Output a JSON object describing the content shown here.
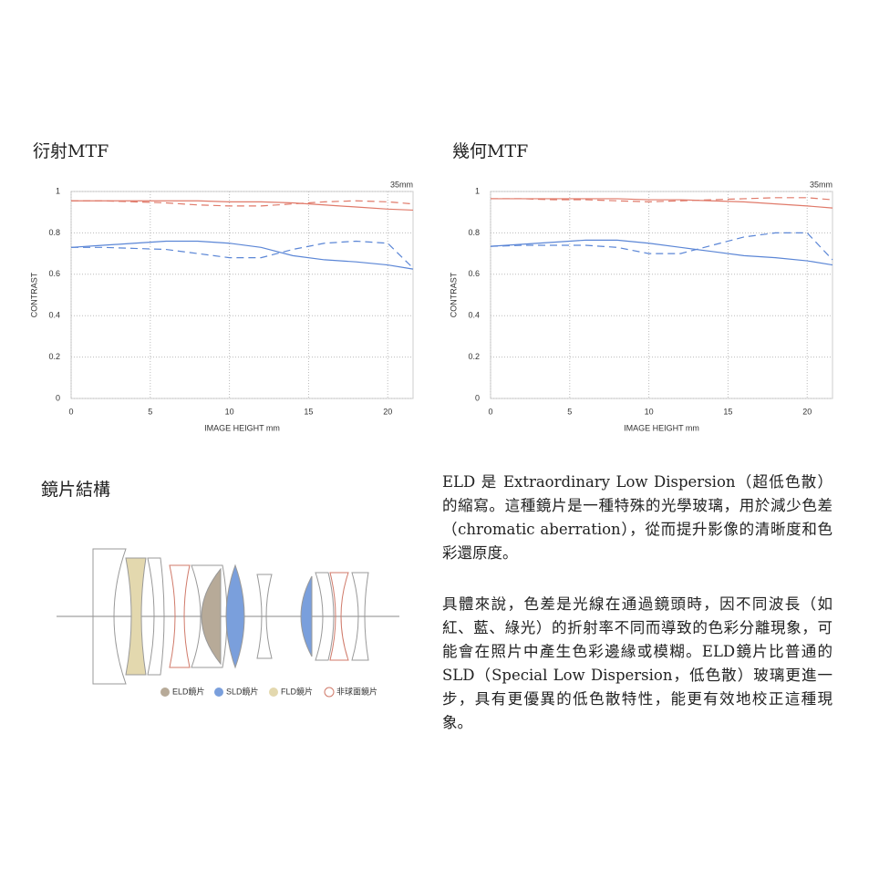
{
  "chart_data": [
    {
      "type": "line",
      "title": "衍射MTF",
      "annotation": "35mm",
      "xlabel": "IMAGE HEIGHT  mm",
      "ylabel": "CONTRAST",
      "xlim": [
        0,
        21.6
      ],
      "ylim": [
        0,
        1
      ],
      "xticks": [
        0,
        5,
        10,
        15,
        20
      ],
      "yticks": [
        0,
        0.2,
        0.4,
        0.6,
        0.8,
        1
      ],
      "grid": true,
      "x": [
        0,
        2,
        4,
        6,
        8,
        10,
        12,
        14,
        16,
        18,
        20,
        21.6
      ],
      "series": [
        {
          "color": "#e07a6a",
          "style": "solid",
          "values": [
            0.955,
            0.955,
            0.955,
            0.955,
            0.955,
            0.95,
            0.95,
            0.945,
            0.935,
            0.925,
            0.915,
            0.91
          ]
        },
        {
          "color": "#e07a6a",
          "style": "dashed",
          "values": [
            0.955,
            0.955,
            0.95,
            0.945,
            0.935,
            0.93,
            0.93,
            0.94,
            0.95,
            0.955,
            0.95,
            0.94
          ]
        },
        {
          "color": "#5b86d6",
          "style": "solid",
          "values": [
            0.73,
            0.74,
            0.75,
            0.76,
            0.76,
            0.75,
            0.73,
            0.69,
            0.67,
            0.66,
            0.645,
            0.625
          ]
        },
        {
          "color": "#5b86d6",
          "style": "dashed",
          "values": [
            0.73,
            0.73,
            0.725,
            0.72,
            0.7,
            0.68,
            0.68,
            0.72,
            0.75,
            0.76,
            0.75,
            0.63
          ]
        }
      ]
    },
    {
      "type": "line",
      "title": "幾何MTF",
      "annotation": "35mm",
      "xlabel": "IMAGE HEIGHT  mm",
      "ylabel": "CONTRAST",
      "xlim": [
        0,
        21.6
      ],
      "ylim": [
        0,
        1
      ],
      "xticks": [
        0,
        5,
        10,
        15,
        20
      ],
      "yticks": [
        0,
        0.2,
        0.4,
        0.6,
        0.8,
        1
      ],
      "grid": true,
      "x": [
        0,
        2,
        4,
        6,
        8,
        10,
        12,
        14,
        16,
        18,
        20,
        21.6
      ],
      "series": [
        {
          "color": "#e07a6a",
          "style": "solid",
          "values": [
            0.965,
            0.965,
            0.965,
            0.965,
            0.965,
            0.96,
            0.96,
            0.955,
            0.95,
            0.94,
            0.93,
            0.92
          ]
        },
        {
          "color": "#e07a6a",
          "style": "dashed",
          "values": [
            0.965,
            0.965,
            0.96,
            0.96,
            0.955,
            0.95,
            0.955,
            0.96,
            0.965,
            0.97,
            0.97,
            0.96
          ]
        },
        {
          "color": "#5b86d6",
          "style": "solid",
          "values": [
            0.735,
            0.745,
            0.755,
            0.765,
            0.765,
            0.75,
            0.73,
            0.71,
            0.69,
            0.68,
            0.665,
            0.645
          ]
        },
        {
          "color": "#5b86d6",
          "style": "dashed",
          "values": [
            0.735,
            0.74,
            0.74,
            0.74,
            0.73,
            0.7,
            0.7,
            0.74,
            0.78,
            0.8,
            0.8,
            0.67
          ]
        }
      ]
    }
  ],
  "lens": {
    "title": "鏡片結構",
    "legend": [
      "ELD鏡片",
      "SLD鏡片",
      "FLD鏡片",
      "非球面鏡片"
    ]
  },
  "description": [
    "ELD 是 Extraordinary Low Dispersion（超低色散）的縮寫。這種鏡片是一種特殊的光學玻璃，用於減少色差（chromatic aberration），從而提升影像的清晰度和色彩還原度。",
    "具體來說，色差是光線在通過鏡頭時，因不同波長（如紅、藍、綠光）的折射率不同而導致的色彩分離現象，可能會在照片中產生色彩邊緣或模糊。ELD鏡片比普通的 SLD（Special Low Dispersion，低色散）玻璃更進一步，具有更優異的低色散特性，能更有效地校正這種現象。"
  ]
}
